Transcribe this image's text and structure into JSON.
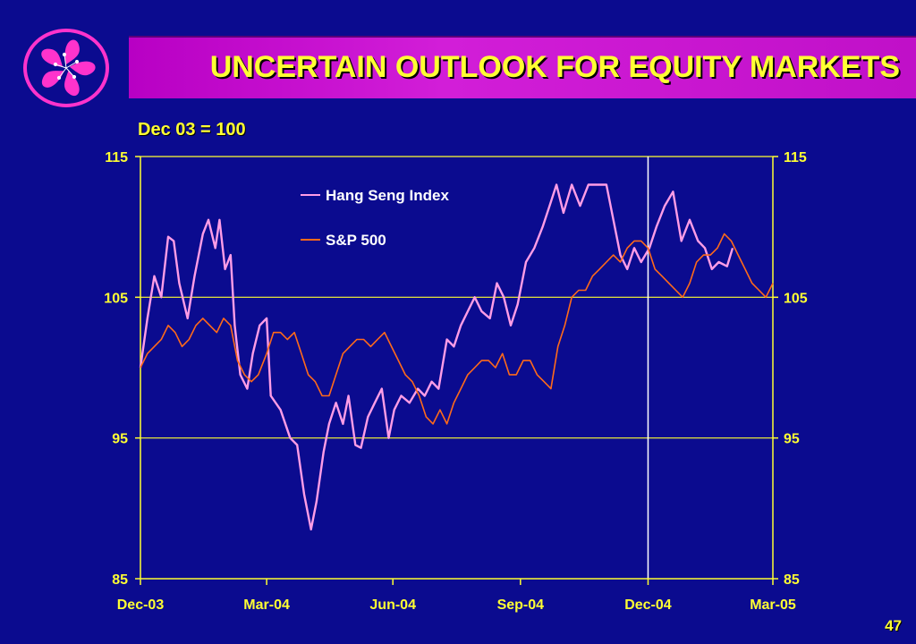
{
  "header": {
    "title": "UNCERTAIN OUTLOOK FOR EQUITY MARKETS",
    "logo_icon": "bauhinia-flower-icon"
  },
  "page_number": "47",
  "colors": {
    "background": "#0b0b8f",
    "title_bar": "#c010c8",
    "title_text": "#ffff33",
    "axis": "#ffff33",
    "hang_seng": "#ff9de6",
    "sp500": "#ff6a1a"
  },
  "chart_data": {
    "type": "line",
    "subtitle": "Dec 03 = 100",
    "x_tick_labels": [
      "Dec-03",
      "Mar-04",
      "Jun-04",
      "Sep-04",
      "Dec-04",
      "Mar-05"
    ],
    "ylim": [
      85,
      115
    ],
    "y_ticks": [
      85,
      95,
      105,
      115
    ],
    "y_axis_both_sides": true,
    "grid": "horizontal at 95, 105, 115 plus vertical at Dec-04",
    "legend_placement": "top-center",
    "series": [
      {
        "name": "Hang Seng Index",
        "color": "#ff9de6",
        "points": [
          [
            "2003-12-31",
            100.0
          ],
          [
            "2004-01-05",
            103.5
          ],
          [
            "2004-01-10",
            106.5
          ],
          [
            "2004-01-15",
            105.0
          ],
          [
            "2004-01-20",
            109.3
          ],
          [
            "2004-01-24",
            109.0
          ],
          [
            "2004-01-28",
            106.0
          ],
          [
            "2004-02-03",
            103.5
          ],
          [
            "2004-02-08",
            106.5
          ],
          [
            "2004-02-14",
            109.5
          ],
          [
            "2004-02-18",
            110.5
          ],
          [
            "2004-02-23",
            108.5
          ],
          [
            "2004-02-26",
            110.5
          ],
          [
            "2004-03-01",
            107.0
          ],
          [
            "2004-03-05",
            108.0
          ],
          [
            "2004-03-08",
            103.0
          ],
          [
            "2004-03-12",
            99.5
          ],
          [
            "2004-03-17",
            98.5
          ],
          [
            "2004-03-21",
            101.0
          ],
          [
            "2004-03-26",
            103.0
          ],
          [
            "2004-03-31",
            103.5
          ],
          [
            "2004-04-03",
            98.0
          ],
          [
            "2004-04-10",
            97.0
          ],
          [
            "2004-04-17",
            95.0
          ],
          [
            "2004-04-22",
            94.5
          ],
          [
            "2004-04-27",
            91.0
          ],
          [
            "2004-05-02",
            88.5
          ],
          [
            "2004-05-06",
            90.5
          ],
          [
            "2004-05-11",
            94.0
          ],
          [
            "2004-05-15",
            96.0
          ],
          [
            "2004-05-20",
            97.5
          ],
          [
            "2004-05-25",
            96.0
          ],
          [
            "2004-05-29",
            98.0
          ],
          [
            "2004-06-03",
            94.5
          ],
          [
            "2004-06-07",
            94.3
          ],
          [
            "2004-06-12",
            96.5
          ],
          [
            "2004-06-17",
            97.5
          ],
          [
            "2004-06-22",
            98.5
          ],
          [
            "2004-06-27",
            95.0
          ],
          [
            "2004-07-01",
            97.0
          ],
          [
            "2004-07-06",
            98.0
          ],
          [
            "2004-07-12",
            97.5
          ],
          [
            "2004-07-18",
            98.5
          ],
          [
            "2004-07-23",
            98.0
          ],
          [
            "2004-07-28",
            99.0
          ],
          [
            "2004-08-02",
            98.5
          ],
          [
            "2004-08-08",
            102.0
          ],
          [
            "2004-08-13",
            101.5
          ],
          [
            "2004-08-18",
            103.0
          ],
          [
            "2004-08-23",
            104.0
          ],
          [
            "2004-08-28",
            105.0
          ],
          [
            "2004-09-02",
            104.0
          ],
          [
            "2004-09-08",
            103.5
          ],
          [
            "2004-09-13",
            106.0
          ],
          [
            "2004-09-18",
            105.0
          ],
          [
            "2004-09-23",
            103.0
          ],
          [
            "2004-09-28",
            104.5
          ],
          [
            "2004-10-04",
            107.5
          ],
          [
            "2004-10-10",
            108.5
          ],
          [
            "2004-10-16",
            110.0
          ],
          [
            "2004-10-21",
            111.5
          ],
          [
            "2004-10-26",
            113.0
          ],
          [
            "2004-10-31",
            111.0
          ],
          [
            "2004-11-06",
            113.0
          ],
          [
            "2004-11-12",
            111.5
          ],
          [
            "2004-11-18",
            113.0
          ],
          [
            "2004-11-24",
            113.0
          ],
          [
            "2004-12-01",
            113.0
          ],
          [
            "2004-12-06",
            110.5
          ],
          [
            "2004-12-11",
            108.0
          ],
          [
            "2004-12-16",
            107.0
          ],
          [
            "2004-12-21",
            108.5
          ],
          [
            "2004-12-26",
            107.5
          ],
          [
            "2005-01-01",
            108.5
          ],
          [
            "2005-01-06",
            110.0
          ],
          [
            "2005-01-12",
            111.5
          ],
          [
            "2005-01-18",
            112.5
          ],
          [
            "2005-01-24",
            109.0
          ],
          [
            "2005-01-30",
            110.5
          ],
          [
            "2005-02-05",
            109.0
          ],
          [
            "2005-02-10",
            108.5
          ],
          [
            "2005-02-15",
            107.0
          ],
          [
            "2005-02-20",
            107.5
          ],
          [
            "2005-02-26",
            107.2
          ],
          [
            "2005-03-02",
            108.5
          ]
        ]
      },
      {
        "name": "S&P 500",
        "color": "#ff6a1a",
        "points": [
          [
            "2003-12-31",
            100.0
          ],
          [
            "2004-01-05",
            101.0
          ],
          [
            "2004-01-10",
            101.5
          ],
          [
            "2004-01-15",
            102.0
          ],
          [
            "2004-01-20",
            103.0
          ],
          [
            "2004-01-25",
            102.5
          ],
          [
            "2004-01-30",
            101.5
          ],
          [
            "2004-02-04",
            102.0
          ],
          [
            "2004-02-09",
            103.0
          ],
          [
            "2004-02-14",
            103.5
          ],
          [
            "2004-02-19",
            103.0
          ],
          [
            "2004-02-24",
            102.5
          ],
          [
            "2004-02-29",
            103.5
          ],
          [
            "2004-03-05",
            103.0
          ],
          [
            "2004-03-10",
            100.5
          ],
          [
            "2004-03-15",
            99.5
          ],
          [
            "2004-03-20",
            99.0
          ],
          [
            "2004-03-25",
            99.5
          ],
          [
            "2004-03-31",
            101.0
          ],
          [
            "2004-04-05",
            102.5
          ],
          [
            "2004-04-10",
            102.5
          ],
          [
            "2004-04-15",
            102.0
          ],
          [
            "2004-04-20",
            102.5
          ],
          [
            "2004-04-25",
            101.0
          ],
          [
            "2004-04-30",
            99.5
          ],
          [
            "2004-05-05",
            99.0
          ],
          [
            "2004-05-10",
            98.0
          ],
          [
            "2004-05-15",
            98.0
          ],
          [
            "2004-05-20",
            99.5
          ],
          [
            "2004-05-25",
            101.0
          ],
          [
            "2004-05-30",
            101.5
          ],
          [
            "2004-06-04",
            102.0
          ],
          [
            "2004-06-09",
            102.0
          ],
          [
            "2004-06-14",
            101.5
          ],
          [
            "2004-06-19",
            102.0
          ],
          [
            "2004-06-24",
            102.5
          ],
          [
            "2004-06-29",
            101.5
          ],
          [
            "2004-07-04",
            100.5
          ],
          [
            "2004-07-09",
            99.5
          ],
          [
            "2004-07-14",
            99.0
          ],
          [
            "2004-07-19",
            98.0
          ],
          [
            "2004-07-24",
            96.5
          ],
          [
            "2004-07-29",
            96.0
          ],
          [
            "2004-08-03",
            97.0
          ],
          [
            "2004-08-08",
            96.0
          ],
          [
            "2004-08-13",
            97.5
          ],
          [
            "2004-08-18",
            98.5
          ],
          [
            "2004-08-23",
            99.5
          ],
          [
            "2004-08-28",
            100.0
          ],
          [
            "2004-09-02",
            100.5
          ],
          [
            "2004-09-07",
            100.5
          ],
          [
            "2004-09-12",
            100.0
          ],
          [
            "2004-09-17",
            101.0
          ],
          [
            "2004-09-22",
            99.5
          ],
          [
            "2004-09-27",
            99.5
          ],
          [
            "2004-10-02",
            100.5
          ],
          [
            "2004-10-07",
            100.5
          ],
          [
            "2004-10-12",
            99.5
          ],
          [
            "2004-10-17",
            99.0
          ],
          [
            "2004-10-22",
            98.5
          ],
          [
            "2004-10-27",
            101.5
          ],
          [
            "2004-11-01",
            103.0
          ],
          [
            "2004-11-06",
            105.0
          ],
          [
            "2004-11-11",
            105.5
          ],
          [
            "2004-11-16",
            105.5
          ],
          [
            "2004-11-21",
            106.5
          ],
          [
            "2004-11-26",
            107.0
          ],
          [
            "2004-12-01",
            107.5
          ],
          [
            "2004-12-06",
            108.0
          ],
          [
            "2004-12-11",
            107.5
          ],
          [
            "2004-12-16",
            108.5
          ],
          [
            "2004-12-21",
            109.0
          ],
          [
            "2004-12-26",
            109.0
          ],
          [
            "2004-12-31",
            108.5
          ],
          [
            "2005-01-05",
            107.0
          ],
          [
            "2005-01-10",
            106.5
          ],
          [
            "2005-01-15",
            106.0
          ],
          [
            "2005-01-20",
            105.5
          ],
          [
            "2005-01-25",
            105.0
          ],
          [
            "2005-01-30",
            106.0
          ],
          [
            "2005-02-04",
            107.5
          ],
          [
            "2005-02-09",
            108.0
          ],
          [
            "2005-02-14",
            108.0
          ],
          [
            "2005-02-19",
            108.5
          ],
          [
            "2005-02-24",
            109.5
          ],
          [
            "2005-03-01",
            109.0
          ],
          [
            "2005-03-06",
            108.0
          ],
          [
            "2005-03-11",
            107.0
          ],
          [
            "2005-03-16",
            106.0
          ],
          [
            "2005-03-21",
            105.5
          ],
          [
            "2005-03-26",
            105.0
          ],
          [
            "2005-03-31",
            106.0
          ]
        ]
      }
    ]
  }
}
